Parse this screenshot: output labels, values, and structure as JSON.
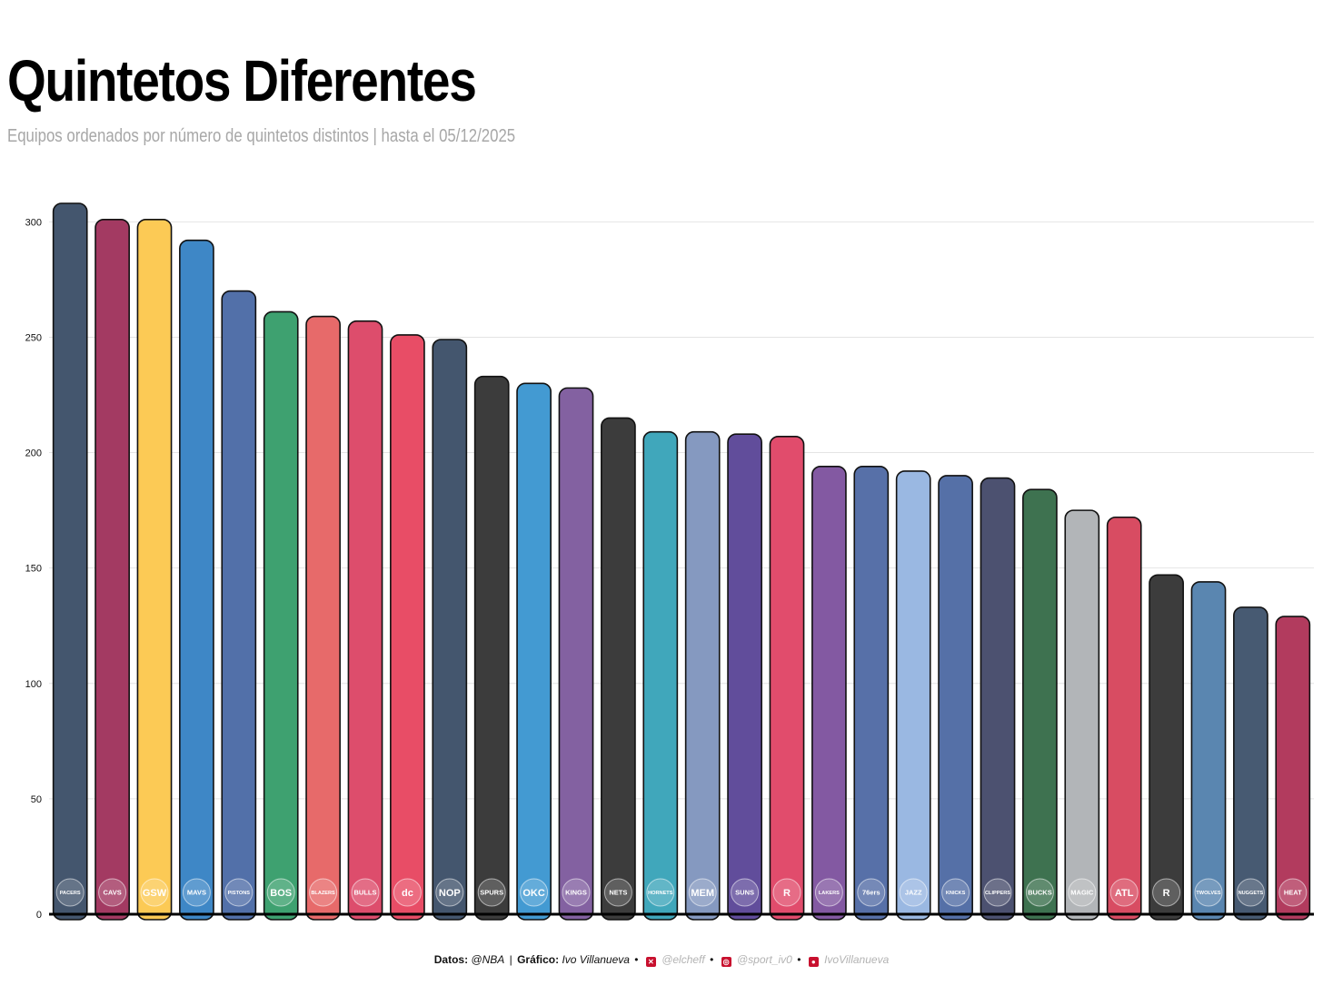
{
  "title": "Quintetos Diferentes",
  "subtitle": "Equipos ordenados por número de quintetos distintos | hasta el 05/12/2025",
  "chart_data": {
    "type": "bar",
    "title": "Quintetos Diferentes",
    "subtitle": "Equipos ordenados por número de quintetos distintos | hasta el 05/12/2025",
    "xlabel": "",
    "ylabel": "",
    "ylim": [
      0,
      308
    ],
    "yticks": [
      0,
      50,
      100,
      150,
      200,
      250,
      300
    ],
    "grid": "horizontal",
    "categories": [
      "Pacers",
      "Cavaliers",
      "Warriors",
      "Mavericks",
      "Pistons",
      "Celtics",
      "Trail Blazers",
      "Bulls",
      "Wizards",
      "Pelicans",
      "Spurs",
      "Thunder",
      "Kings",
      "Nets",
      "Hornets",
      "Grizzlies",
      "Suns",
      "Raptors",
      "Lakers",
      "76ers",
      "Jazz",
      "Knicks",
      "Clippers",
      "Bucks",
      "Magic",
      "Hawks",
      "Rockets",
      "Timberwolves",
      "Nuggets",
      "Heat"
    ],
    "values": [
      308,
      301,
      301,
      292,
      270,
      261,
      259,
      257,
      251,
      249,
      233,
      230,
      228,
      215,
      209,
      209,
      208,
      207,
      194,
      194,
      192,
      190,
      189,
      184,
      175,
      172,
      147,
      144,
      133,
      129
    ],
    "colors": [
      "#44566e",
      "#a33a62",
      "#fcca55",
      "#3e87c6",
      "#5270a9",
      "#3ea170",
      "#e76a6a",
      "#dd4d6c",
      "#e84d66",
      "#44566e",
      "#3c3c3c",
      "#439ad2",
      "#8361a1",
      "#3c3c3c",
      "#40a7bb",
      "#8599c0",
      "#614d9b",
      "#e14c6c",
      "#8359a2",
      "#5770a8",
      "#9ab8e2",
      "#5570a7",
      "#4c5170",
      "#3e7250",
      "#b2b5b8",
      "#d84c62",
      "#3c3c3c",
      "#5a86b0",
      "#475a72",
      "#b23b5e"
    ],
    "logo_labels": [
      "PACERS",
      "CAVS",
      "GSW",
      "MAVS",
      "PISTONS",
      "BOS",
      "BLAZERS",
      "BULLS",
      "dc",
      "NOP",
      "SPURS",
      "OKC",
      "KINGS",
      "NETS",
      "HORNETS",
      "MEM",
      "SUNS",
      "R",
      "LAKERS",
      "76ers",
      "JAZZ",
      "KNICKS",
      "CLIPPERS",
      "BUCKS",
      "MAGIC",
      "ATL",
      "R",
      "TWOLVES",
      "NUGGETS",
      "HEAT"
    ]
  },
  "credits": {
    "data_label": "Datos:",
    "data_source": "@NBA",
    "divider": "|",
    "chart_label": "Gráfico:",
    "author": "Ivo Villanueva",
    "dot": "•",
    "x_icon": "x-icon",
    "x_handle": "@elcheff",
    "instagram_icon": "instagram-icon",
    "instagram_handle": "@sport_iv0",
    "github_icon": "github-icon",
    "github_handle": "IvoVillanueva"
  }
}
